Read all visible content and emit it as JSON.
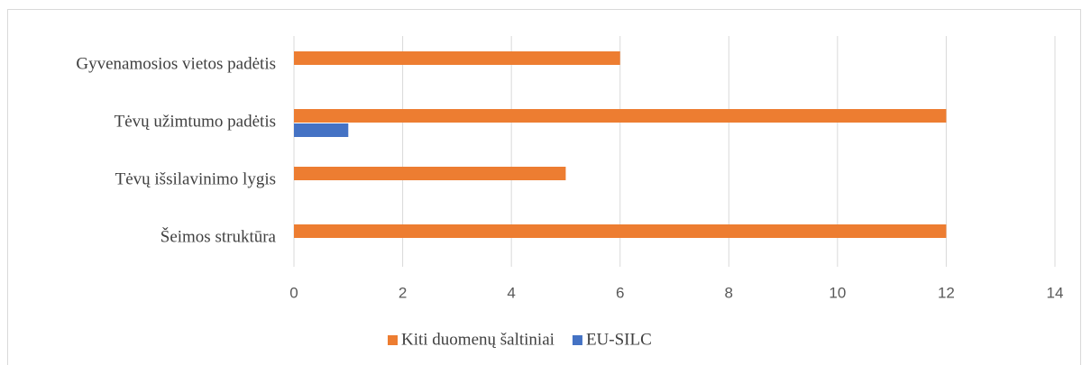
{
  "chart_data": {
    "type": "hbar",
    "categories": [
      "Gyvenamosios vietos padėtis",
      "Tėvų užimtumo padėtis",
      "Tėvų išsilavinimo lygis",
      "Šeimos struktūra"
    ],
    "series": [
      {
        "name": "Kiti duomenų šaltiniai",
        "color": "#ed7d31",
        "values": [
          6,
          12,
          5,
          12
        ]
      },
      {
        "name": "EU-SILC",
        "color": "#4472c4",
        "values": [
          0,
          1,
          0,
          0
        ]
      }
    ],
    "xlim": [
      0,
      14
    ],
    "xticks": [
      0,
      2,
      4,
      6,
      8,
      10,
      12,
      14
    ],
    "grid": true,
    "legend": "bottom"
  }
}
